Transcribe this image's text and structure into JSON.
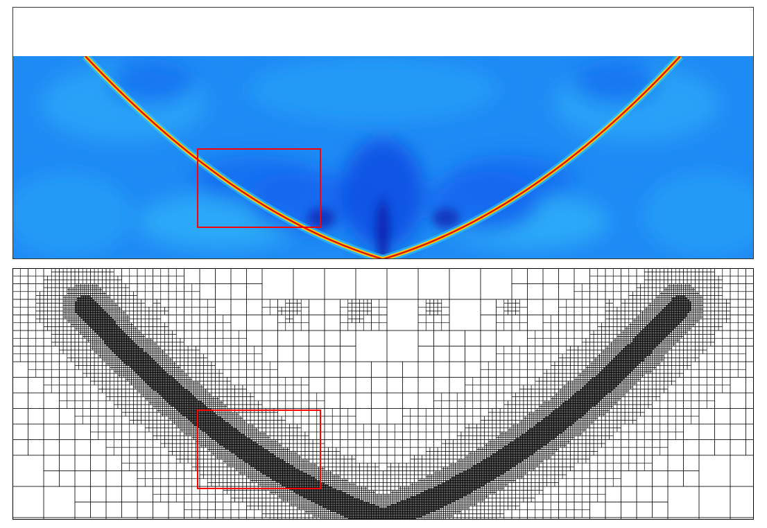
{
  "figure": {
    "top_panel": {
      "kind": "phase-field contour plot",
      "colormap": [
        "#0a3ad6",
        "#1466f0",
        "#1f8bf5",
        "#2aa6f8",
        "#38c8fb",
        "#ffffff",
        "#ffe000",
        "#ff6a00",
        "#c80000"
      ]
    },
    "bottom_panel": {
      "kind": "adaptive quadtree mesh"
    },
    "highlight": {
      "color": "#ff0000"
    }
  }
}
